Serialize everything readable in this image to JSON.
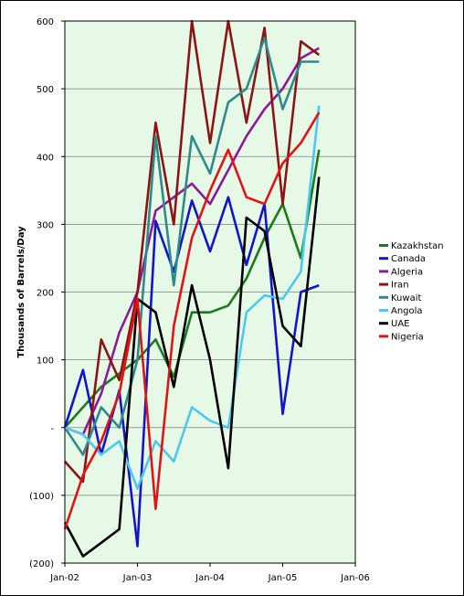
{
  "chart_data": {
    "type": "line",
    "title": "",
    "xlabel": "",
    "ylabel": "Thousands of Barrels/Day",
    "xlim": [
      "2002-01",
      "2006-01"
    ],
    "ylim": [
      -200,
      600
    ],
    "y_ticks": [
      -200,
      -100,
      0,
      100,
      200,
      300,
      400,
      500,
      600
    ],
    "y_tick_labels": [
      "(200)",
      "(100)",
      "-",
      "100",
      "200",
      "300",
      "400",
      "500",
      "600"
    ],
    "x_ticks": [
      "2002-01",
      "2003-01",
      "2004-01",
      "2005-01",
      "2006-01"
    ],
    "x_tick_labels": [
      "Jan-02",
      "Jan-03",
      "Jan-04",
      "Jan-05",
      "Jan-06"
    ],
    "grid": "horizontal",
    "plot_background": "#e6f8e6",
    "legend_position": "right",
    "series": [
      {
        "name": "Kazakhstan",
        "color": "#1b7a1b",
        "x": [
          "2002-01",
          "2002-04",
          "2002-07",
          "2002-10",
          "2003-01",
          "2003-04",
          "2003-07",
          "2003-10",
          "2004-01",
          "2004-04",
          "2004-07",
          "2004-10",
          "2005-01",
          "2005-04",
          "2005-07"
        ],
        "values": [
          0,
          30,
          60,
          80,
          100,
          130,
          75,
          170,
          170,
          180,
          220,
          280,
          330,
          250,
          410
        ]
      },
      {
        "name": "Canada",
        "color": "#1414c8",
        "x": [
          "2002-01",
          "2002-04",
          "2002-07",
          "2002-10",
          "2003-01",
          "2003-04",
          "2003-07",
          "2003-10",
          "2004-01",
          "2004-04",
          "2004-07",
          "2004-10",
          "2005-01",
          "2005-04",
          "2005-07"
        ],
        "values": [
          0,
          85,
          -40,
          55,
          -175,
          305,
          230,
          335,
          260,
          340,
          240,
          330,
          20,
          200,
          210
        ]
      },
      {
        "name": "Algeria",
        "color": "#8c1a9a",
        "x": [
          "2002-01",
          "2002-04",
          "2002-07",
          "2002-10",
          "2003-01",
          "2003-04",
          "2003-07",
          "2003-10",
          "2004-01",
          "2004-04",
          "2004-07",
          "2004-10",
          "2005-01",
          "2005-04",
          "2005-07"
        ],
        "values": [
          0,
          -10,
          50,
          140,
          200,
          320,
          340,
          360,
          330,
          380,
          430,
          470,
          500,
          545,
          560
        ]
      },
      {
        "name": "Iran",
        "color": "#8b1414",
        "x": [
          "2002-01",
          "2002-04",
          "2002-07",
          "2002-10",
          "2003-01",
          "2003-04",
          "2003-07",
          "2003-10",
          "2004-01",
          "2004-04",
          "2004-07",
          "2004-10",
          "2005-01",
          "2005-04",
          "2005-07"
        ],
        "values": [
          -50,
          -80,
          130,
          70,
          200,
          450,
          300,
          600,
          420,
          600,
          450,
          590,
          330,
          570,
          550
        ]
      },
      {
        "name": "Kuwait",
        "color": "#2e8b8b",
        "x": [
          "2002-01",
          "2002-04",
          "2002-07",
          "2002-10",
          "2003-01",
          "2003-04",
          "2003-07",
          "2003-10",
          "2004-01",
          "2004-04",
          "2004-07",
          "2004-10",
          "2005-01",
          "2005-04",
          "2005-07"
        ],
        "values": [
          0,
          -40,
          30,
          0,
          100,
          430,
          210,
          430,
          375,
          480,
          500,
          575,
          470,
          540,
          540
        ]
      },
      {
        "name": "Angola",
        "color": "#4fc8f0",
        "x": [
          "2002-01",
          "2002-04",
          "2002-07",
          "2002-10",
          "2003-01",
          "2003-04",
          "2003-07",
          "2003-10",
          "2004-01",
          "2004-04",
          "2004-07",
          "2004-10",
          "2005-01",
          "2005-04",
          "2005-07"
        ],
        "values": [
          0,
          -10,
          -40,
          -20,
          -90,
          -20,
          -50,
          30,
          10,
          0,
          170,
          195,
          190,
          230,
          475
        ]
      },
      {
        "name": "UAE",
        "color": "#000000",
        "x": [
          "2002-01",
          "2002-04",
          "2002-07",
          "2002-10",
          "2003-01",
          "2003-04",
          "2003-07",
          "2003-10",
          "2004-01",
          "2004-04",
          "2004-07",
          "2004-10",
          "2005-01",
          "2005-04",
          "2005-07"
        ],
        "values": [
          -140,
          -190,
          -170,
          -150,
          190,
          170,
          60,
          210,
          100,
          -60,
          310,
          290,
          150,
          120,
          370
        ]
      },
      {
        "name": "Nigeria",
        "color": "#e01414",
        "x": [
          "2002-01",
          "2002-04",
          "2002-07",
          "2002-10",
          "2003-01",
          "2003-04",
          "2003-07",
          "2003-10",
          "2004-01",
          "2004-04",
          "2004-07",
          "2004-10",
          "2005-01",
          "2005-04",
          "2005-07"
        ],
        "values": [
          -150,
          -70,
          -20,
          50,
          190,
          -120,
          150,
          280,
          350,
          410,
          340,
          330,
          390,
          420,
          465
        ]
      }
    ]
  }
}
